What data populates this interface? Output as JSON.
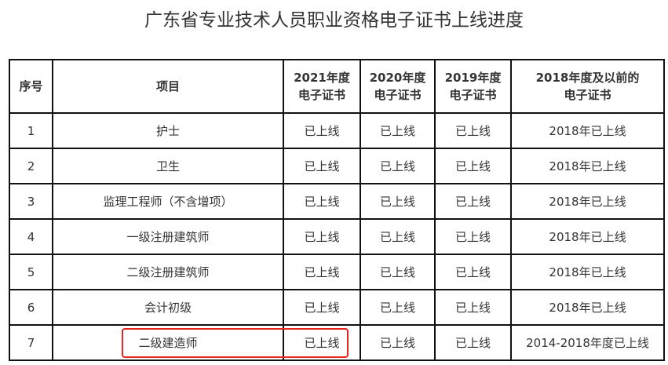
{
  "title": "广东省专业技术人员职业资格电子证书上线进度",
  "headers": [
    "序号",
    "项目",
    "2021年度电子证书",
    "2020年度电子证书",
    "2019年度电子证书",
    "2018年度及以前的电子证书"
  ],
  "header_lines": [
    [
      "序号"
    ],
    [
      "项目"
    ],
    [
      "2021年度",
      "电子证书"
    ],
    [
      "2020年度",
      "电子证书"
    ],
    [
      "2019年度",
      "电子证书"
    ],
    [
      "2018年度及以前的",
      "电子证书"
    ]
  ],
  "rows": [
    [
      "1",
      "护士",
      "已上线",
      "已上线",
      "已上线",
      "2018年已上线"
    ],
    [
      "2",
      "卫生",
      "已上线",
      "已上线",
      "已上线",
      "2018年已上线"
    ],
    [
      "3",
      "监理工程师（不含增项）",
      "已上线",
      "已上线",
      "已上线",
      "2018年已上线"
    ],
    [
      "4",
      "一级注册建筑师",
      "已上线",
      "已上线",
      "已上线",
      "2018年已上线"
    ],
    [
      "5",
      "二级注册建筑师",
      "已上线",
      "已上线",
      "已上线",
      "2018年已上线"
    ],
    [
      "6",
      "会计初级",
      "已上线",
      "已上线",
      "已上线",
      "2018年已上线"
    ],
    [
      "7",
      "二级建造师",
      "已上线",
      "已上线",
      "已上线",
      "2014-2018年度已上线"
    ]
  ],
  "highlight_color": "#e8251e"
}
